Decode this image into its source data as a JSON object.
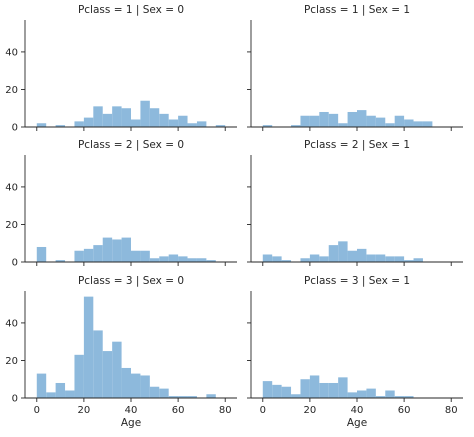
{
  "chart_data": {
    "type": "histogram-facet-grid",
    "xlabel": "Age",
    "xlim": [
      -5,
      85
    ],
    "ylim": [
      0,
      57
    ],
    "x_ticks": [
      0,
      20,
      40,
      60,
      80
    ],
    "y_ticks": [
      0,
      20,
      40
    ],
    "bar_color": "#8db9dc",
    "bin_width": 4,
    "panels": [
      {
        "title": "Pclass = 1 | Sex = 0",
        "bins": [
          {
            "x0": 0,
            "x1": 4,
            "count": 2
          },
          {
            "x0": 8,
            "x1": 12,
            "count": 1
          },
          {
            "x0": 16,
            "x1": 20,
            "count": 3
          },
          {
            "x0": 20,
            "x1": 24,
            "count": 5
          },
          {
            "x0": 24,
            "x1": 28,
            "count": 11
          },
          {
            "x0": 28,
            "x1": 32,
            "count": 7
          },
          {
            "x0": 32,
            "x1": 36,
            "count": 11
          },
          {
            "x0": 36,
            "x1": 40,
            "count": 10
          },
          {
            "x0": 40,
            "x1": 44,
            "count": 4
          },
          {
            "x0": 44,
            "x1": 48,
            "count": 14
          },
          {
            "x0": 48,
            "x1": 52,
            "count": 10
          },
          {
            "x0": 52,
            "x1": 56,
            "count": 7
          },
          {
            "x0": 56,
            "x1": 60,
            "count": 4
          },
          {
            "x0": 60,
            "x1": 64,
            "count": 6
          },
          {
            "x0": 64,
            "x1": 68,
            "count": 2
          },
          {
            "x0": 68,
            "x1": 72,
            "count": 3
          },
          {
            "x0": 76,
            "x1": 80,
            "count": 1
          }
        ]
      },
      {
        "title": "Pclass = 1 | Sex = 1",
        "bins": [
          {
            "x0": 0,
            "x1": 4,
            "count": 1
          },
          {
            "x0": 12,
            "x1": 16,
            "count": 1
          },
          {
            "x0": 16,
            "x1": 20,
            "count": 6
          },
          {
            "x0": 20,
            "x1": 24,
            "count": 6
          },
          {
            "x0": 24,
            "x1": 28,
            "count": 8
          },
          {
            "x0": 28,
            "x1": 32,
            "count": 7
          },
          {
            "x0": 32,
            "x1": 36,
            "count": 2
          },
          {
            "x0": 36,
            "x1": 40,
            "count": 8
          },
          {
            "x0": 40,
            "x1": 44,
            "count": 9
          },
          {
            "x0": 44,
            "x1": 48,
            "count": 6
          },
          {
            "x0": 48,
            "x1": 52,
            "count": 5
          },
          {
            "x0": 52,
            "x1": 56,
            "count": 2
          },
          {
            "x0": 56,
            "x1": 60,
            "count": 6
          },
          {
            "x0": 60,
            "x1": 64,
            "count": 4
          },
          {
            "x0": 64,
            "x1": 68,
            "count": 3
          },
          {
            "x0": 68,
            "x1": 72,
            "count": 3
          }
        ]
      },
      {
        "title": "Pclass = 2 | Sex = 0",
        "bins": [
          {
            "x0": 0,
            "x1": 4,
            "count": 8
          },
          {
            "x0": 8,
            "x1": 12,
            "count": 1
          },
          {
            "x0": 16,
            "x1": 20,
            "count": 6
          },
          {
            "x0": 20,
            "x1": 24,
            "count": 7
          },
          {
            "x0": 24,
            "x1": 28,
            "count": 9
          },
          {
            "x0": 28,
            "x1": 32,
            "count": 13
          },
          {
            "x0": 32,
            "x1": 36,
            "count": 12
          },
          {
            "x0": 36,
            "x1": 40,
            "count": 13
          },
          {
            "x0": 40,
            "x1": 44,
            "count": 6
          },
          {
            "x0": 44,
            "x1": 48,
            "count": 6
          },
          {
            "x0": 48,
            "x1": 52,
            "count": 2
          },
          {
            "x0": 52,
            "x1": 56,
            "count": 3
          },
          {
            "x0": 56,
            "x1": 60,
            "count": 4
          },
          {
            "x0": 60,
            "x1": 64,
            "count": 3
          },
          {
            "x0": 64,
            "x1": 68,
            "count": 2
          },
          {
            "x0": 68,
            "x1": 72,
            "count": 2
          },
          {
            "x0": 72,
            "x1": 76,
            "count": 1
          }
        ]
      },
      {
        "title": "Pclass = 2 | Sex = 1",
        "bins": [
          {
            "x0": 0,
            "x1": 4,
            "count": 4
          },
          {
            "x0": 4,
            "x1": 8,
            "count": 3
          },
          {
            "x0": 8,
            "x1": 12,
            "count": 1
          },
          {
            "x0": 16,
            "x1": 20,
            "count": 2
          },
          {
            "x0": 20,
            "x1": 24,
            "count": 4
          },
          {
            "x0": 24,
            "x1": 28,
            "count": 3
          },
          {
            "x0": 28,
            "x1": 32,
            "count": 9
          },
          {
            "x0": 32,
            "x1": 36,
            "count": 11
          },
          {
            "x0": 36,
            "x1": 40,
            "count": 6
          },
          {
            "x0": 40,
            "x1": 44,
            "count": 7
          },
          {
            "x0": 44,
            "x1": 48,
            "count": 4
          },
          {
            "x0": 48,
            "x1": 52,
            "count": 4
          },
          {
            "x0": 52,
            "x1": 56,
            "count": 3
          },
          {
            "x0": 56,
            "x1": 60,
            "count": 3
          },
          {
            "x0": 60,
            "x1": 64,
            "count": 1
          },
          {
            "x0": 64,
            "x1": 68,
            "count": 2
          }
        ]
      },
      {
        "title": "Pclass = 3 | Sex = 0",
        "bins": [
          {
            "x0": 0,
            "x1": 4,
            "count": 13
          },
          {
            "x0": 4,
            "x1": 8,
            "count": 3
          },
          {
            "x0": 8,
            "x1": 12,
            "count": 8
          },
          {
            "x0": 12,
            "x1": 16,
            "count": 4
          },
          {
            "x0": 16,
            "x1": 20,
            "count": 23
          },
          {
            "x0": 20,
            "x1": 24,
            "count": 54
          },
          {
            "x0": 24,
            "x1": 28,
            "count": 36
          },
          {
            "x0": 28,
            "x1": 32,
            "count": 25
          },
          {
            "x0": 32,
            "x1": 36,
            "count": 30
          },
          {
            "x0": 36,
            "x1": 40,
            "count": 16
          },
          {
            "x0": 40,
            "x1": 44,
            "count": 13
          },
          {
            "x0": 44,
            "x1": 48,
            "count": 12
          },
          {
            "x0": 48,
            "x1": 52,
            "count": 6
          },
          {
            "x0": 52,
            "x1": 56,
            "count": 5
          },
          {
            "x0": 56,
            "x1": 60,
            "count": 1
          },
          {
            "x0": 60,
            "x1": 64,
            "count": 1
          },
          {
            "x0": 64,
            "x1": 68,
            "count": 1
          },
          {
            "x0": 72,
            "x1": 76,
            "count": 2
          }
        ]
      },
      {
        "title": "Pclass = 3 | Sex = 1",
        "bins": [
          {
            "x0": 0,
            "x1": 4,
            "count": 9
          },
          {
            "x0": 4,
            "x1": 8,
            "count": 7
          },
          {
            "x0": 8,
            "x1": 12,
            "count": 6
          },
          {
            "x0": 12,
            "x1": 16,
            "count": 2
          },
          {
            "x0": 16,
            "x1": 20,
            "count": 10
          },
          {
            "x0": 20,
            "x1": 24,
            "count": 12
          },
          {
            "x0": 24,
            "x1": 28,
            "count": 8
          },
          {
            "x0": 28,
            "x1": 32,
            "count": 8
          },
          {
            "x0": 32,
            "x1": 36,
            "count": 11
          },
          {
            "x0": 36,
            "x1": 40,
            "count": 3
          },
          {
            "x0": 40,
            "x1": 44,
            "count": 4
          },
          {
            "x0": 44,
            "x1": 48,
            "count": 5
          },
          {
            "x0": 48,
            "x1": 52,
            "count": 1
          },
          {
            "x0": 52,
            "x1": 56,
            "count": 4
          },
          {
            "x0": 56,
            "x1": 60,
            "count": 1
          },
          {
            "x0": 60,
            "x1": 64,
            "count": 1
          }
        ]
      }
    ]
  }
}
